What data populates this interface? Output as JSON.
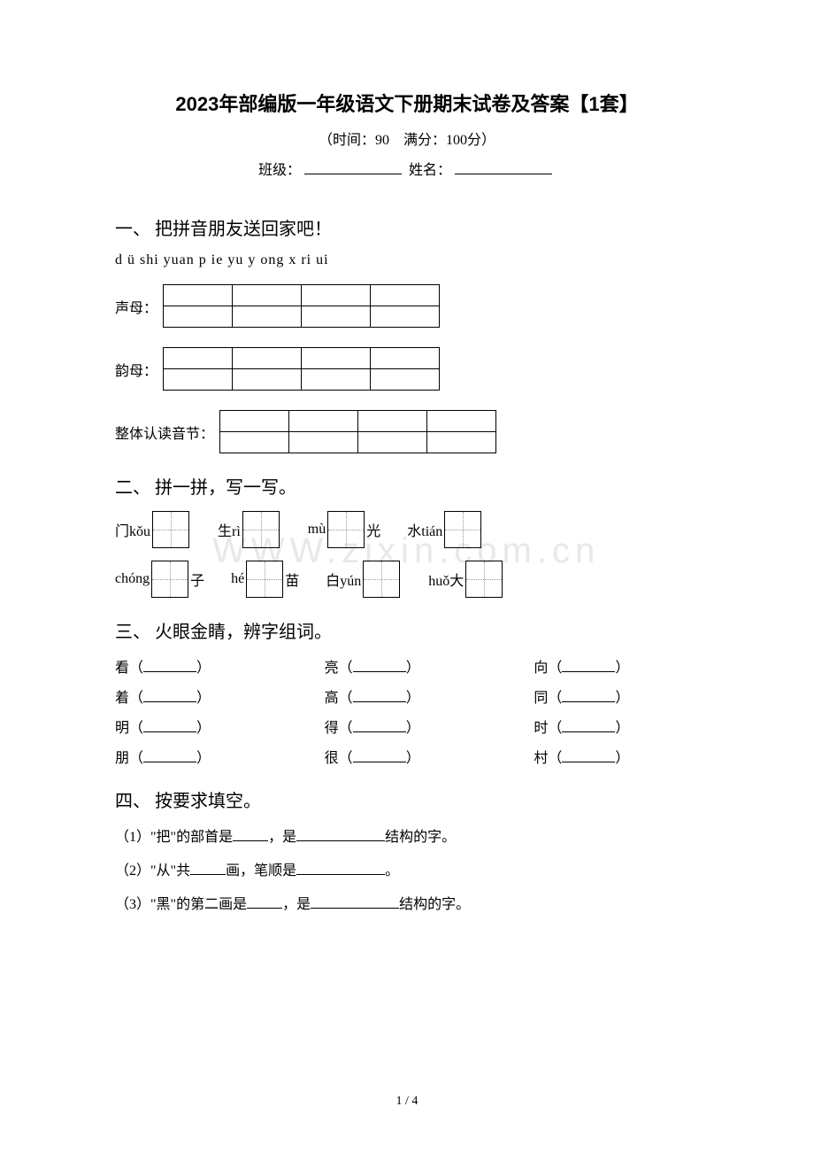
{
  "title": "2023年部编版一年级语文下册期末试卷及答案【1套】",
  "subtitle": "（时间：90　满分：100分）",
  "class_label": "班级：",
  "name_label": "姓名：",
  "section1": {
    "title": "一、 把拼音朋友送回家吧！",
    "pinyin": "d  ü  shi  yuan  p  ie  yu  y  ong  x  ri  ui",
    "row1_label": "声母：",
    "row2_label": "韵母：",
    "row3_label": "整体认读音节：",
    "row1_cols": 4,
    "row2_cols": 4,
    "row3_cols": 4
  },
  "section2": {
    "title": "二、 拼一拼，写一写。",
    "items_row1": [
      {
        "pre": "门kǒu",
        "post": ""
      },
      {
        "pre": "生rì",
        "post": ""
      },
      {
        "pre": "mù",
        "post": "光"
      },
      {
        "pre": "水tián",
        "post": ""
      }
    ],
    "items_row2": [
      {
        "pre": "chóng",
        "post": "子"
      },
      {
        "pre": "hé",
        "post": "苗"
      },
      {
        "pre": "白yún",
        "post": ""
      },
      {
        "pre": "huǒ大",
        "post": ""
      }
    ]
  },
  "section3": {
    "title": "三、 火眼金睛，辨字组词。",
    "rows": [
      [
        "看",
        "亮",
        "向"
      ],
      [
        "着",
        "高",
        "同"
      ],
      [
        "明",
        "得",
        "时"
      ],
      [
        "朋",
        "很",
        "村"
      ]
    ]
  },
  "section4": {
    "title": "四、 按要求填空。",
    "q1_a": "（1）\"把\"的部首是",
    "q1_b": "，是",
    "q1_c": "结构的字。",
    "q2_a": "（2）\"从\"共",
    "q2_b": "画，笔顺是",
    "q2_c": "。",
    "q3_a": "（3）\"黑\"的第二画是",
    "q3_b": "，是",
    "q3_c": "结构的字。"
  },
  "watermark": "WWW.zixin.com.cn",
  "page_number": "1 / 4"
}
